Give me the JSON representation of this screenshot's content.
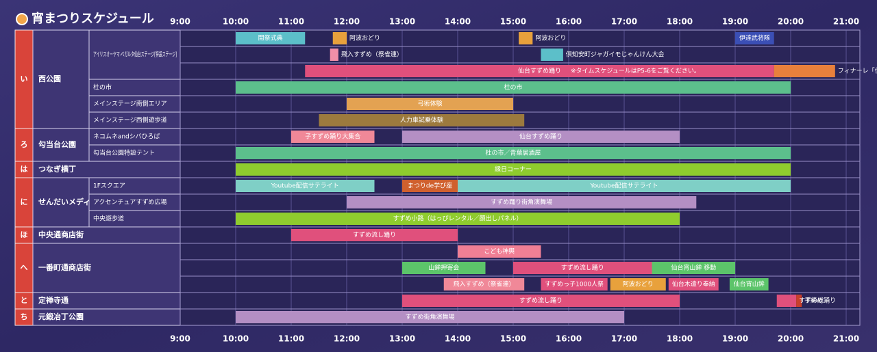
{
  "title": "宵まつりスケジュール",
  "time_start": 9,
  "time_end": 21,
  "ticks": [
    {
      "value": 9,
      "label": "9:00"
    },
    {
      "value": 10,
      "label": "10:00"
    },
    {
      "value": 11,
      "label": "11:00"
    },
    {
      "value": 12,
      "label": "12:00"
    },
    {
      "value": 13,
      "label": "13:00"
    },
    {
      "value": 14,
      "label": "14:00"
    },
    {
      "value": 15,
      "label": "15:00"
    },
    {
      "value": 16,
      "label": "16:00"
    },
    {
      "value": 17,
      "label": "17:00"
    },
    {
      "value": 18,
      "label": "18:00"
    },
    {
      "value": 19,
      "label": "19:00"
    },
    {
      "value": 20,
      "label": "20:00"
    },
    {
      "value": 21,
      "label": "21:00"
    }
  ],
  "venues": [
    {
      "letter": "い",
      "name": "西公園",
      "groups": [
        {
          "label": "アイリスオーヤマ-ベガルタ仙台ステージ[特設ステージ]",
          "rows": [
            [
              {
                "label": "開祭式典",
                "start": 10,
                "end": 11.25,
                "color": "#5cbfc9"
              },
              {
                "label": "阿波おどり",
                "start": 11.75,
                "end": 12,
                "color": "#e8a13c"
              },
              {
                "label": "阿波おどり",
                "start": 15.1,
                "end": 15.35,
                "color": "#e8a13c"
              },
              {
                "label": "伊達武将隊",
                "start": 19,
                "end": 19.7,
                "color": "#3b4fb5"
              }
            ],
            [
              {
                "label": "飛入すずめ（祭雀連）",
                "start": 11.7,
                "end": 11.85,
                "color": "#f08fa8"
              },
              {
                "label": "倶知安町ジャガイモじゃんけん大会",
                "start": 15.5,
                "end": 15.9,
                "color": "#5cbfc9"
              }
            ],
            [
              {
                "label": "仙台すずめ踊り",
                "note": "※タイムスケジュールはP5-6をご覧ください。",
                "start": 11.25,
                "end": 19.7,
                "color": "#e0507c"
              },
              {
                "label": "フィナーレ「伊達の舞」",
                "start": 19.7,
                "end": 20.8,
                "color": "#e8803c"
              }
            ]
          ]
        },
        {
          "label": "杜の市",
          "rows": [
            [
              {
                "label": "杜の市",
                "start": 10,
                "end": 20,
                "color": "#5cbf8c"
              }
            ]
          ]
        },
        {
          "label": "メインステージ南側エリア",
          "rows": [
            [
              {
                "label": "弓術体験",
                "start": 12,
                "end": 15,
                "color": "#e3a252"
              }
            ]
          ]
        },
        {
          "label": "メインステージ西側遊歩道",
          "rows": [
            [
              {
                "label": "人力車試乗体験",
                "start": 11.5,
                "end": 15.2,
                "color": "#9c7a3e"
              }
            ]
          ]
        }
      ]
    },
    {
      "letter": "ろ",
      "name": "勾当台公園",
      "groups": [
        {
          "label": "ネコムネandシバひろば",
          "rows": [
            [
              {
                "label": "子すずめ踊り大集合",
                "start": 11,
                "end": 12.5,
                "color": "#f08898"
              },
              {
                "label": "仙台すずめ踊り",
                "start": 13,
                "end": 18,
                "color": "#b48fc4"
              }
            ]
          ]
        },
        {
          "label": "勾当台公園特設テント",
          "rows": [
            [
              {
                "label": "杜の市／青葉居酒屋",
                "start": 10,
                "end": 20,
                "color": "#5cbf8c"
              }
            ]
          ]
        }
      ]
    },
    {
      "letter": "は",
      "name": "つなぎ横丁",
      "groups": [
        {
          "rows": [
            [
              {
                "label": "縁日コーナー",
                "start": 10,
                "end": 20,
                "color": "#8fcc2e"
              }
            ]
          ]
        }
      ]
    },
    {
      "letter": "に",
      "name": "せんだいメディアテーク",
      "groups": [
        {
          "label": "1Fスクエア",
          "rows": [
            [
              {
                "label": "Youtube配信サテライト",
                "start": 10,
                "end": 12.5,
                "color": "#7fcfc6"
              },
              {
                "label": "まつりde学び座",
                "start": 13,
                "end": 14,
                "color": "#d0602e"
              },
              {
                "label": "Youtube配信サテライト",
                "start": 14,
                "end": 20,
                "color": "#7fcfc6"
              }
            ]
          ]
        },
        {
          "label": "アクセンチュアすずめ広場",
          "rows": [
            [
              {
                "label": "すずめ踊り街角演舞場",
                "start": 12,
                "end": 18.3,
                "color": "#b48fc4"
              }
            ]
          ]
        },
        {
          "label": "中央遊歩道",
          "rows": [
            [
              {
                "label": "すずめ小路（はっぴレンタル／顔出しパネル）",
                "start": 10,
                "end": 18,
                "color": "#8fcc2e"
              }
            ]
          ]
        }
      ]
    },
    {
      "letter": "ほ",
      "name": "中央通商店街",
      "groups": [
        {
          "rows": [
            [
              {
                "label": "すずめ流し踊り",
                "start": 11,
                "end": 14,
                "color": "#e0507c"
              }
            ]
          ]
        }
      ]
    },
    {
      "letter": "へ",
      "name": "一番町通商店街",
      "groups": [
        {
          "rows": [
            [
              {
                "label": "こども神輿",
                "start": 14,
                "end": 15.5,
                "color": "#f07f95"
              }
            ],
            [
              {
                "label": "山鉾押寄会",
                "start": 13,
                "end": 14.5,
                "color": "#5cc46a"
              },
              {
                "label": "すずめ流し踊り",
                "start": 15,
                "end": 17.5,
                "color": "#e0507c"
              },
              {
                "label": "仙台宵山鉾 移動",
                "start": 17.5,
                "end": 19,
                "color": "#5cc46a"
              }
            ],
            [
              {
                "label": "飛入すずめ（祭雀連）",
                "start": 13.75,
                "end": 15.2,
                "color": "#f08898"
              },
              {
                "label": "すずめっ子1000人祭",
                "start": 15.5,
                "end": 16.7,
                "color": "#e0507c"
              },
              {
                "label": "阿波おどり",
                "start": 16.75,
                "end": 17.75,
                "color": "#e8a13c"
              },
              {
                "label": "仙台木遣り奉納",
                "start": 17.8,
                "end": 18.7,
                "color": "#e0507c"
              },
              {
                "label": "仙台宵山鉾",
                "start": 18.9,
                "end": 19.6,
                "color": "#5cc46a"
              }
            ]
          ]
        }
      ]
    },
    {
      "letter": "と",
      "name": "定禅寺通",
      "groups": [
        {
          "rows": [
            [
              {
                "label": "すずめ流し踊り",
                "start": 13,
                "end": 18,
                "color": "#e0507c"
              },
              {
                "label": "すずめ総踊り",
                "start": 19.75,
                "end": 20.1,
                "color": "#e0507c"
              },
              {
                "label": "手締め",
                "start": 20.1,
                "end": 20.2,
                "color": "#c8402c"
              }
            ]
          ]
        }
      ]
    },
    {
      "letter": "ち",
      "name": "元鍛冶丁公園",
      "groups": [
        {
          "rows": [
            [
              {
                "label": "すずめ街角演舞場",
                "start": 10,
                "end": 17,
                "color": "#b48fc4"
              }
            ]
          ]
        }
      ]
    }
  ]
}
